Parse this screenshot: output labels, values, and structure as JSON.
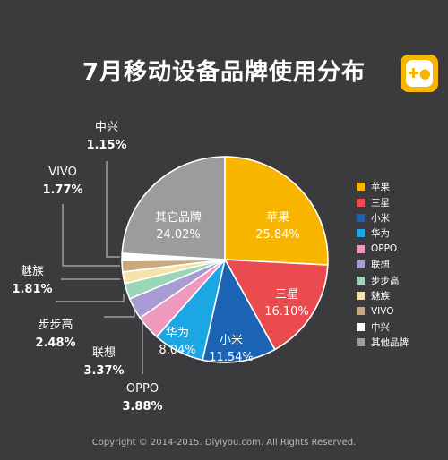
{
  "title": "7月移动设备品牌使用分布",
  "logo_icon": "gamepad-icon",
  "copyright": "Copyright © 2014-2015. Diyiyou.com. All Rights Reserved.",
  "chart_data": {
    "type": "pie",
    "title": "7月移动设备品牌使用分布",
    "slices": [
      {
        "name": "苹果",
        "value": 25.84,
        "label": "苹果",
        "value_label": "25.84%",
        "color": "#f7b500"
      },
      {
        "name": "三星",
        "value": 16.1,
        "label": "三星",
        "value_label": "16.10%",
        "color": "#e94b4f"
      },
      {
        "name": "小米",
        "value": 11.54,
        "label": "小米",
        "value_label": "11.54%",
        "color": "#1a64b3"
      },
      {
        "name": "华为",
        "value": 8.04,
        "label": "华为",
        "value_label": "8.04%",
        "color": "#1aa7e3"
      },
      {
        "name": "OPPO",
        "value": 3.88,
        "label": "OPPO",
        "value_label": "3.88%",
        "color": "#ee99bd"
      },
      {
        "name": "联想",
        "value": 3.37,
        "label": "联想",
        "value_label": "3.37%",
        "color": "#a99bd3"
      },
      {
        "name": "步步高",
        "value": 2.48,
        "label": "步步高",
        "value_label": "2.48%",
        "color": "#9ad7b6"
      },
      {
        "name": "魅族",
        "value": 1.81,
        "label": "魅族",
        "value_label": "1.81%",
        "color": "#f4e3ad"
      },
      {
        "name": "VIVO",
        "value": 1.77,
        "label": "VIVO",
        "value_label": "1.77%",
        "color": "#c9aa7e"
      },
      {
        "name": "中兴",
        "value": 1.15,
        "label": "中兴",
        "value_label": "1.15%",
        "color": "#ffffff"
      },
      {
        "name": "其它品牌",
        "value": 24.02,
        "label": "其它品牌",
        "value_label": "24.02%",
        "color": "#9b9c9e"
      }
    ],
    "legend": {
      "placement": "right",
      "items": [
        {
          "label": "苹果",
          "color": "#f7b500"
        },
        {
          "label": "三星",
          "color": "#e94b4f"
        },
        {
          "label": "小米",
          "color": "#1a64b3"
        },
        {
          "label": "华为",
          "color": "#1aa7e3"
        },
        {
          "label": "OPPO",
          "color": "#ee99bd"
        },
        {
          "label": "联想",
          "color": "#a99bd3"
        },
        {
          "label": "步步高",
          "color": "#9ad7b6"
        },
        {
          "label": "魅族",
          "color": "#f4e3ad"
        },
        {
          "label": "VIVO",
          "color": "#c9aa7e"
        },
        {
          "label": "中兴",
          "color": "#ffffff"
        },
        {
          "label": "其他品牌",
          "color": "#9b9c9e"
        }
      ]
    }
  }
}
